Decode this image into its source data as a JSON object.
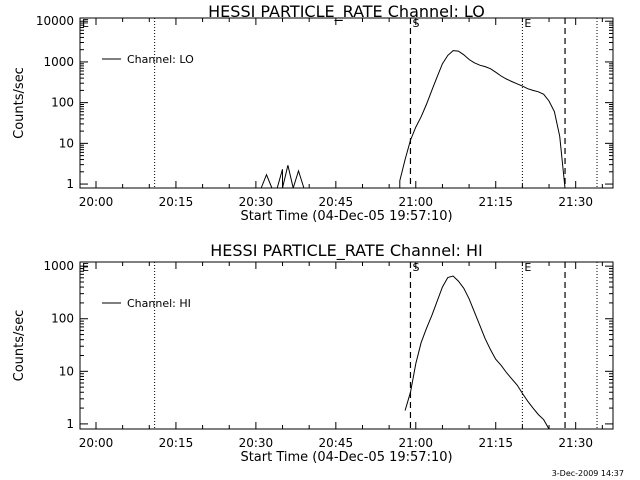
{
  "footer_text": "3-Dec-2009 14:37",
  "colors": {
    "background": "#ffffff",
    "foreground": "#000000"
  },
  "chart_data": [
    {
      "type": "line",
      "title": "HESSI PARTICLE_RATE Channel: LO",
      "xlabel": "Start Time (04-Dec-05 19:57:10)",
      "ylabel": "Counts/sec",
      "legend": "Channel: LO",
      "legend_position": "top-left",
      "y_scale": "log",
      "xlim": [
        "19:57",
        "21:37"
      ],
      "ylim": [
        0.8,
        12000
      ],
      "x_ticks": [
        "20:00",
        "20:15",
        "20:30",
        "20:45",
        "21:00",
        "21:15",
        "21:30"
      ],
      "y_ticks": [
        "1",
        "10",
        "100",
        "1000",
        "10000"
      ],
      "markers": [
        {
          "time": "19:57",
          "label": "E",
          "style": "none"
        },
        {
          "time": "20:11",
          "label": "",
          "style": "dotted"
        },
        {
          "time": "20:59",
          "label": "S",
          "style": "dashed"
        },
        {
          "time": "21:20",
          "label": "E",
          "style": "dotted"
        },
        {
          "time": "21:28",
          "label": "",
          "style": "dashed"
        },
        {
          "time": "21:34",
          "label": "",
          "style": "dotted"
        }
      ],
      "series": [
        {
          "name": "Channel: LO",
          "x": [
            "20:31",
            "20:32",
            "20:33",
            "20:34",
            "20:35",
            "20:35",
            "20:36",
            "20:37",
            "20:37",
            "20:38",
            "20:39",
            "20:40",
            "20:41",
            "20:42",
            "20:43",
            "20:44",
            "20:45",
            "20:46",
            "20:47",
            "20:48",
            "20:49",
            "20:50",
            "20:51",
            "20:52",
            "20:53",
            "20:54",
            "20:55",
            "20:56",
            "20:57",
            "20:57",
            "20:58",
            "20:59",
            "21:00",
            "21:01",
            "21:02",
            "21:03",
            "21:04",
            "21:05",
            "21:06",
            "21:07",
            "21:08",
            "21:09",
            "21:10",
            "21:11",
            "21:12",
            "21:13",
            "21:14",
            "21:15",
            "21:16",
            "21:17",
            "21:18",
            "21:19",
            "21:20",
            "21:21",
            "21:22",
            "21:23",
            "21:24",
            "21:25",
            "21:26",
            "21:27",
            "21:28"
          ],
          "y": [
            0,
            1.7,
            0,
            0,
            2.3,
            0,
            2.9,
            0,
            0,
            2.1,
            0,
            0,
            0,
            0,
            0,
            0,
            0,
            0,
            0,
            0,
            0,
            0,
            0,
            0,
            0,
            0,
            0,
            0,
            0,
            1.2,
            4,
            12,
            25,
            45,
            90,
            200,
            430,
            900,
            1450,
            1900,
            1850,
            1500,
            1150,
            950,
            830,
            770,
            680,
            560,
            450,
            380,
            330,
            290,
            255,
            220,
            200,
            185,
            160,
            110,
            60,
            15,
            0
          ]
        }
      ]
    },
    {
      "type": "line",
      "title": "HESSI PARTICLE_RATE Channel: HI",
      "xlabel": "Start Time (04-Dec-05 19:57:10)",
      "ylabel": "Counts/sec",
      "legend": "Channel: HI",
      "legend_position": "top-left",
      "y_scale": "log",
      "xlim": [
        "19:57",
        "21:37"
      ],
      "ylim": [
        0.8,
        1200
      ],
      "x_ticks": [
        "20:00",
        "20:15",
        "20:30",
        "20:45",
        "21:00",
        "21:15",
        "21:30"
      ],
      "y_ticks": [
        "1",
        "10",
        "100",
        "1000"
      ],
      "markers": [
        {
          "time": "19:57",
          "label": "E",
          "style": "none"
        },
        {
          "time": "20:11",
          "label": "",
          "style": "dotted"
        },
        {
          "time": "20:59",
          "label": "S",
          "style": "dashed"
        },
        {
          "time": "21:20",
          "label": "E",
          "style": "dotted"
        },
        {
          "time": "21:28",
          "label": "",
          "style": "dashed"
        },
        {
          "time": "21:34",
          "label": "",
          "style": "dotted"
        }
      ],
      "series": [
        {
          "name": "Channel: HI",
          "x": [
            "20:58",
            "20:59",
            "21:00",
            "21:01",
            "21:02",
            "21:03",
            "21:04",
            "21:05",
            "21:06",
            "21:07",
            "21:08",
            "21:09",
            "21:10",
            "21:11",
            "21:12",
            "21:13",
            "21:14",
            "21:15",
            "21:16",
            "21:17",
            "21:18",
            "21:19",
            "21:20",
            "21:21",
            "21:22",
            "21:23",
            "21:24",
            "21:25"
          ],
          "y": [
            1.8,
            4,
            14,
            35,
            65,
            115,
            215,
            400,
            610,
            650,
            520,
            380,
            240,
            135,
            75,
            42,
            26,
            17,
            13,
            9.5,
            7.2,
            5.5,
            3.8,
            2.7,
            2.0,
            1.5,
            1.2,
            0
          ]
        }
      ]
    }
  ]
}
